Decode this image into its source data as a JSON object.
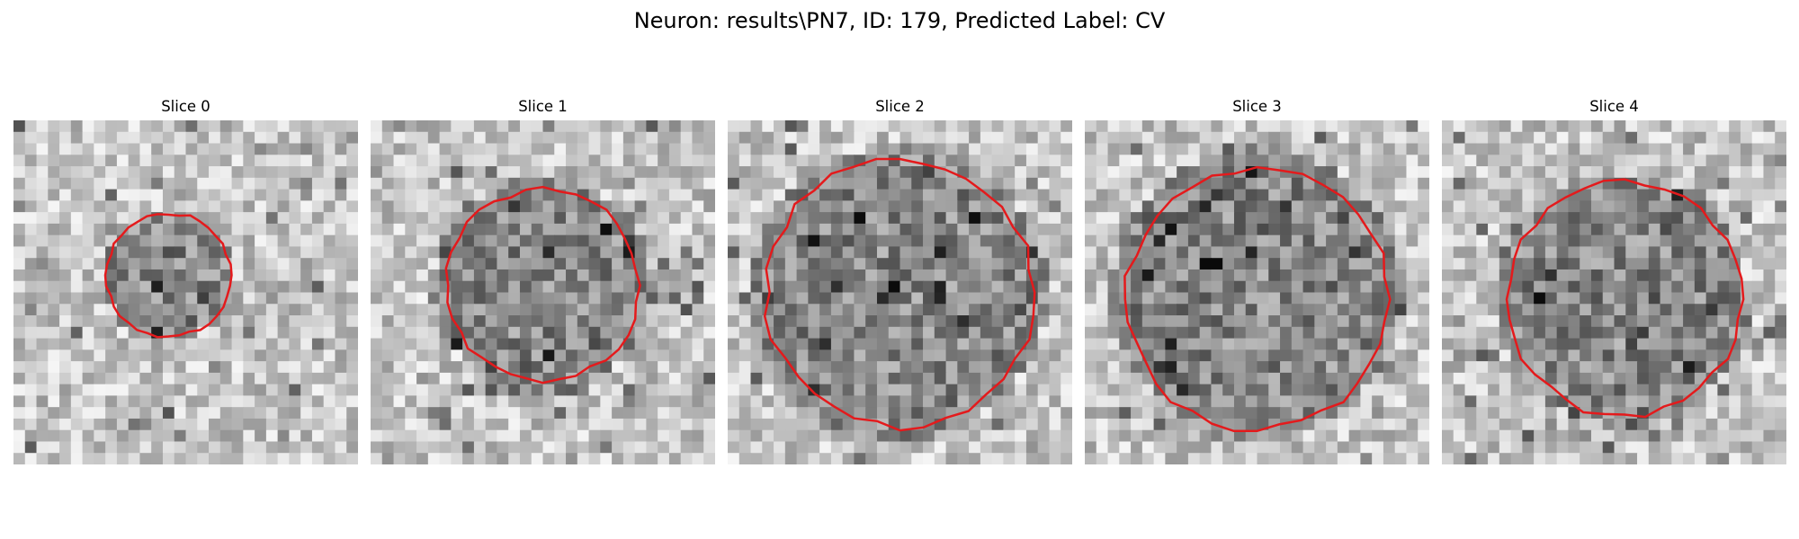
{
  "figure": {
    "title": "Neuron: results\\PN7, ID: 179, Predicted Label: CV"
  },
  "slices": [
    {
      "title": "Slice 0",
      "dark_center": [
        0.45,
        0.45
      ],
      "dark_radius": 0.13,
      "outline_center": [
        0.45,
        0.45
      ],
      "outline_radius": 0.18
    },
    {
      "title": "Slice 1",
      "dark_center": [
        0.5,
        0.48
      ],
      "dark_radius": 0.26,
      "outline_center": [
        0.5,
        0.48
      ],
      "outline_radius": 0.28
    },
    {
      "title": "Slice 2",
      "dark_center": [
        0.5,
        0.5
      ],
      "dark_radius": 0.37,
      "outline_center": [
        0.5,
        0.5
      ],
      "outline_radius": 0.39
    },
    {
      "title": "Slice 3",
      "dark_center": [
        0.5,
        0.5
      ],
      "dark_radius": 0.36,
      "outline_center": [
        0.5,
        0.52
      ],
      "outline_radius": 0.38
    },
    {
      "title": "Slice 4",
      "dark_center": [
        0.52,
        0.52
      ],
      "dark_radius": 0.31,
      "outline_center": [
        0.53,
        0.52
      ],
      "outline_radius": 0.34
    }
  ],
  "colors": {
    "outline": "#e41a1c",
    "background": "#ffffff"
  },
  "image": {
    "grid_size": 30,
    "colormap": "gray"
  }
}
